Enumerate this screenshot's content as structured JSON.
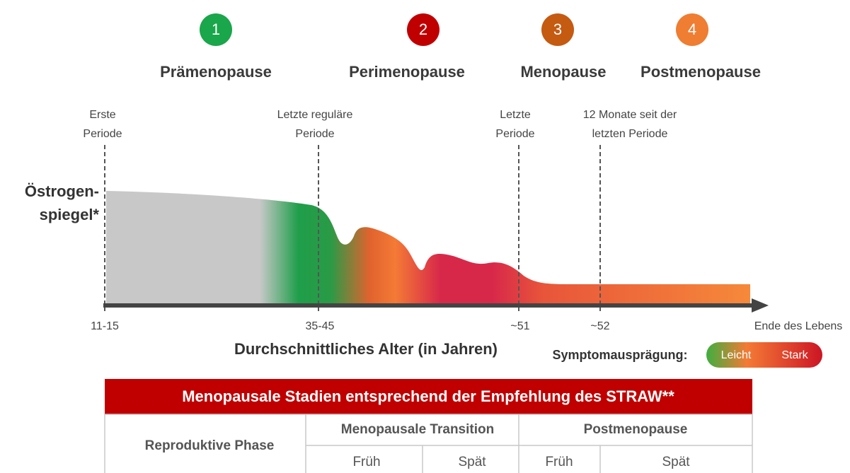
{
  "stages": [
    {
      "number": "1",
      "name": "Prämenopause"
    },
    {
      "number": "2",
      "name": "Perimenopause"
    },
    {
      "number": "3",
      "name": "Menopause"
    },
    {
      "number": "4",
      "name": "Postmenopause"
    }
  ],
  "events": [
    {
      "lines": [
        "Erste",
        "Periode"
      ]
    },
    {
      "lines": [
        "Letzte reguläre",
        "Periode"
      ]
    },
    {
      "lines": [
        "Letzte",
        "Periode"
      ]
    },
    {
      "lines": [
        "12 Monate seit der",
        "letzten Periode"
      ]
    }
  ],
  "y_label": [
    "Östrogen-",
    "spiegel*"
  ],
  "ages": [
    "11-15",
    "35-45",
    "~51",
    "~52",
    "Ende des Lebens"
  ],
  "x_label": "Durchschnittliches Alter (in Jahren)",
  "legend": {
    "title": "Symptomausprägung:",
    "low": "Leicht",
    "high": "Stark"
  },
  "table": {
    "title": "Menopausale Stadien entsprechend der Empfehlung des STRAW**",
    "header": [
      "Reproduktive Phase",
      "Menopausale Transition",
      "Postmenopause"
    ],
    "sub": [
      "Früh",
      "Spät",
      "Früh",
      "Spät"
    ]
  }
}
